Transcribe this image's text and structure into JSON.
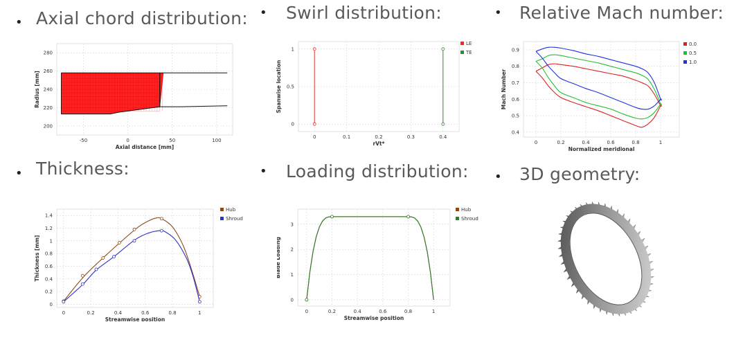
{
  "headings": {
    "axial": "Axial chord distribution:",
    "swirl": "Swirl distribution:",
    "mach": "Relative Mach number:",
    "thickness": "Thickness:",
    "loading": "Loading distribution:",
    "geometry": "3D geometry:"
  },
  "bullet_glyph": "•",
  "chart_data": [
    {
      "id": "axial",
      "type": "area",
      "xlabel": "Axial distance [mm]",
      "ylabel": "Radius [mm]",
      "xlim": [
        -80,
        118
      ],
      "ylim": [
        190,
        290
      ],
      "xticks": [
        -50,
        0,
        50,
        100
      ],
      "yticks": [
        200,
        220,
        240,
        260,
        280
      ],
      "grid": true,
      "shroud": {
        "x": [
          -75,
          112
        ],
        "y": [
          258,
          258
        ]
      },
      "hub": {
        "x": [
          -75,
          -20,
          -10,
          36,
          60,
          112
        ],
        "y": [
          213,
          213,
          215,
          221,
          221,
          222
        ]
      },
      "blade": {
        "x_le": -75,
        "x_te": 40,
        "x_te_hub": 36,
        "color": "#ff2020"
      }
    },
    {
      "id": "swirl",
      "type": "line",
      "xlabel": "rVt*",
      "ylabel": "Spanwise location",
      "xlim": [
        -0.05,
        0.45
      ],
      "ylim": [
        -0.1,
        1.1
      ],
      "xticks": [
        0,
        0.1,
        0.2,
        0.3,
        0.4
      ],
      "yticks": [
        0,
        0.5,
        1
      ],
      "grid": true,
      "legend": "top-right",
      "series": [
        {
          "name": "LE",
          "color": "#e03030",
          "x": [
            0,
            0
          ],
          "y": [
            0,
            1
          ]
        },
        {
          "name": "TE",
          "color": "#2e8b2e",
          "x": [
            0.4,
            0.4
          ],
          "y": [
            0,
            1
          ]
        }
      ]
    },
    {
      "id": "mach",
      "type": "line",
      "xlabel": "Normalized meridional",
      "ylabel": "Mach Number",
      "xlim": [
        -0.1,
        1.15
      ],
      "ylim": [
        0.37,
        0.95
      ],
      "xticks": [
        0,
        0.2,
        0.4,
        0.6,
        0.8,
        1
      ],
      "yticks": [
        0.4,
        0.5,
        0.6,
        0.7,
        0.8,
        0.9
      ],
      "grid": true,
      "legend": "top-right",
      "series": [
        {
          "name": "0.0",
          "color": "#e02020",
          "x": [
            0,
            0.05,
            0.1,
            0.15,
            0.2,
            0.3,
            0.4,
            0.5,
            0.6,
            0.7,
            0.8,
            0.85,
            0.9,
            0.95,
            1,
            1,
            0.95,
            0.9,
            0.85,
            0.8,
            0.7,
            0.6,
            0.5,
            0.4,
            0.3,
            0.2,
            0.15,
            0.1,
            0.05,
            0
          ],
          "y": [
            0.77,
            0.79,
            0.81,
            0.815,
            0.81,
            0.8,
            0.785,
            0.77,
            0.755,
            0.74,
            0.715,
            0.7,
            0.68,
            0.63,
            0.56,
            0.56,
            0.49,
            0.45,
            0.43,
            0.44,
            0.47,
            0.5,
            0.53,
            0.555,
            0.58,
            0.61,
            0.64,
            0.68,
            0.73,
            0.77
          ]
        },
        {
          "name": "0.5",
          "color": "#22c030",
          "x": [
            0,
            0.05,
            0.1,
            0.15,
            0.2,
            0.3,
            0.4,
            0.5,
            0.6,
            0.7,
            0.8,
            0.85,
            0.9,
            0.95,
            1,
            1,
            0.95,
            0.9,
            0.85,
            0.8,
            0.7,
            0.6,
            0.5,
            0.4,
            0.3,
            0.2,
            0.15,
            0.1,
            0.05,
            0
          ],
          "y": [
            0.83,
            0.845,
            0.865,
            0.87,
            0.865,
            0.85,
            0.835,
            0.82,
            0.8,
            0.78,
            0.76,
            0.745,
            0.72,
            0.66,
            0.57,
            0.57,
            0.52,
            0.49,
            0.48,
            0.485,
            0.51,
            0.54,
            0.56,
            0.58,
            0.61,
            0.64,
            0.68,
            0.73,
            0.79,
            0.83
          ]
        },
        {
          "name": "1.0",
          "color": "#2030e0",
          "x": [
            0,
            0.05,
            0.1,
            0.15,
            0.2,
            0.3,
            0.4,
            0.5,
            0.6,
            0.7,
            0.8,
            0.85,
            0.9,
            0.95,
            1,
            1,
            0.95,
            0.9,
            0.85,
            0.8,
            0.7,
            0.6,
            0.5,
            0.4,
            0.3,
            0.2,
            0.15,
            0.1,
            0.05,
            0
          ],
          "y": [
            0.89,
            0.905,
            0.915,
            0.915,
            0.91,
            0.895,
            0.875,
            0.86,
            0.84,
            0.82,
            0.8,
            0.785,
            0.76,
            0.7,
            0.6,
            0.6,
            0.56,
            0.54,
            0.54,
            0.55,
            0.58,
            0.61,
            0.64,
            0.665,
            0.695,
            0.725,
            0.76,
            0.8,
            0.85,
            0.89
          ]
        }
      ]
    },
    {
      "id": "thickness",
      "type": "line",
      "xlabel": "Streamwise position",
      "ylabel": "Thickness [mm]",
      "xlim": [
        -0.05,
        1.1
      ],
      "ylim": [
        -0.05,
        1.5
      ],
      "xticks": [
        0,
        0.2,
        0.4,
        0.6,
        0.8,
        1
      ],
      "yticks": [
        0,
        0.2,
        0.4,
        0.6,
        0.8,
        1,
        1.2,
        1.4
      ],
      "grid": true,
      "legend": "top-right",
      "series": [
        {
          "name": "Hub",
          "color": "#8b4a1c",
          "x": [
            0,
            0.15,
            0.3,
            0.45,
            0.55,
            0.62,
            0.68,
            0.72,
            0.8,
            0.88,
            0.94,
            1
          ],
          "y": [
            0.05,
            0.44,
            0.75,
            1.04,
            1.22,
            1.31,
            1.36,
            1.35,
            1.22,
            0.92,
            0.55,
            0.12
          ],
          "markers_x": [
            0,
            0.14,
            0.29,
            0.41,
            0.52,
            0.72,
            1
          ],
          "markers_y": [
            0.05,
            0.45,
            0.73,
            0.97,
            1.18,
            1.35,
            0.12
          ]
        },
        {
          "name": "Shroud",
          "color": "#3030c8",
          "x": [
            0,
            0.14,
            0.24,
            0.37,
            0.52,
            0.62,
            0.7,
            0.74,
            0.82,
            0.9,
            0.95,
            1
          ],
          "y": [
            0.04,
            0.31,
            0.54,
            0.75,
            1.01,
            1.12,
            1.16,
            1.15,
            1.02,
            0.74,
            0.45,
            0.04
          ],
          "markers_x": [
            0,
            0.14,
            0.24,
            0.37,
            0.52,
            0.72,
            1
          ],
          "markers_y": [
            0.04,
            0.32,
            0.55,
            0.75,
            1.0,
            1.16,
            0.04
          ]
        }
      ]
    },
    {
      "id": "loading",
      "type": "line",
      "xlabel": "Streamwise position",
      "ylabel": "Blade Loading",
      "xlim": [
        -0.07,
        1.13
      ],
      "ylim": [
        -0.25,
        3.6
      ],
      "xticks": [
        0,
        0.2,
        0.4,
        0.6,
        0.8,
        1
      ],
      "yticks": [
        0,
        1,
        2,
        3
      ],
      "grid": true,
      "legend": "top-right",
      "series": [
        {
          "name": "Hub",
          "color": "#8b4a1c",
          "x": [
            0,
            0.2,
            0.8,
            1
          ],
          "y": [
            0,
            3.3,
            3.3,
            0
          ]
        },
        {
          "name": "Shroud",
          "color": "#2e7d2e",
          "x": [
            0,
            0.2,
            0.8,
            1
          ],
          "y": [
            0,
            3.3,
            3.3,
            0
          ]
        }
      ]
    }
  ]
}
